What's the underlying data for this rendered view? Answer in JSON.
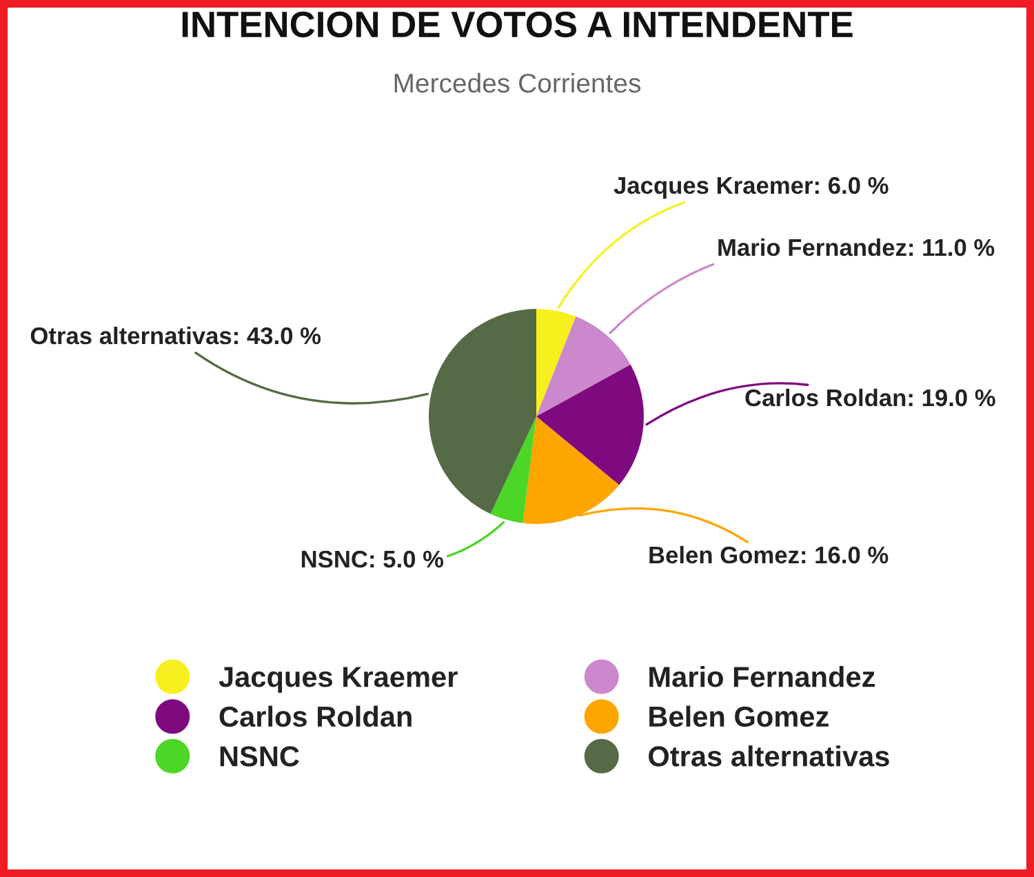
{
  "chart_data": {
    "type": "pie",
    "title": "INTENCION DE VOTOS A INTENDENTE",
    "subtitle": "Mercedes Corrientes",
    "categories": [
      "Jacques Kraemer",
      "Mario Fernandez",
      "Carlos Roldan",
      "Belen Gomez",
      "NSNC",
      "Otras alternativas"
    ],
    "values": [
      6.0,
      11.0,
      19.0,
      16.0,
      5.0,
      43.0
    ],
    "value_labels": [
      "Jacques Kraemer: 6.0 %",
      "Mario Fernandez: 11.0 %",
      "Carlos Roldan: 19.0 %",
      "Belen Gomez: 16.0 %",
      "NSNC: 5.0 %",
      "Otras alternativas: 43.0 %"
    ],
    "colors": [
      "#f7f01e",
      "#cc88cc",
      "#7f0a7f",
      "#ffa500",
      "#4cd626",
      "#556b45"
    ],
    "legend": "bottom"
  }
}
